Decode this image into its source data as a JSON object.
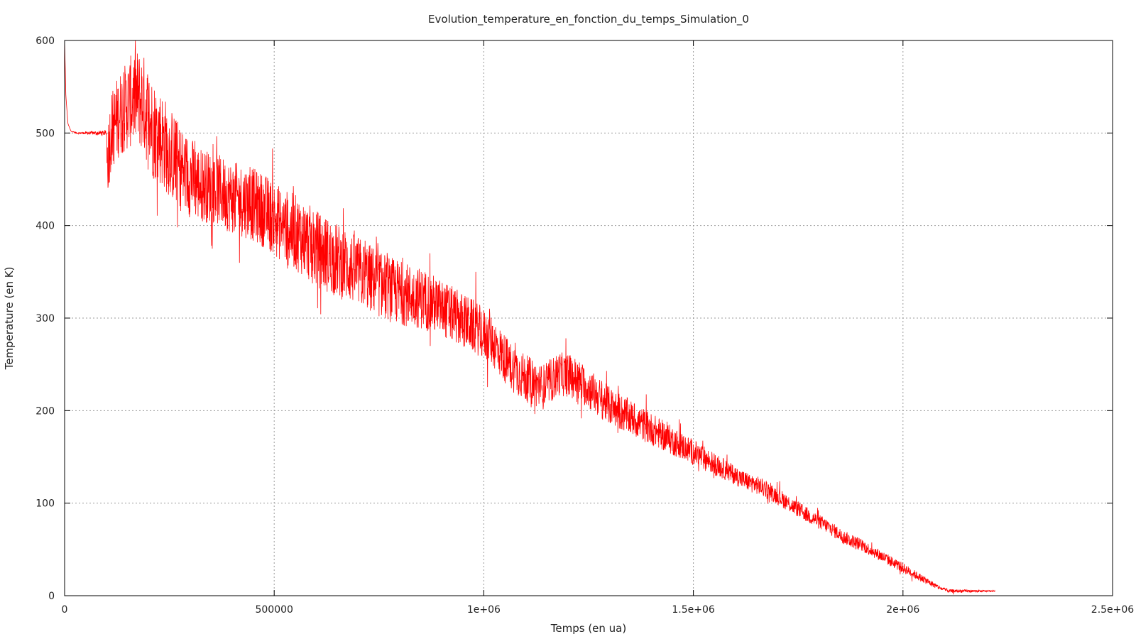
{
  "chart_data": {
    "type": "line",
    "title": "Evolution_temperature_en_fonction_du_temps_Simulation_0",
    "xlabel": "Temps (en ua)",
    "ylabel": "Temperature (en K)",
    "xlim": [
      0,
      2500000
    ],
    "ylim": [
      0,
      600
    ],
    "xticks": [
      {
        "value": 0,
        "label": "0"
      },
      {
        "value": 500000,
        "label": "500000"
      },
      {
        "value": 1000000,
        "label": "1e+06"
      },
      {
        "value": 1500000,
        "label": "1.5e+06"
      },
      {
        "value": 2000000,
        "label": "2e+06"
      },
      {
        "value": 2500000,
        "label": "2.5e+06"
      }
    ],
    "yticks": [
      {
        "value": 0,
        "label": "0"
      },
      {
        "value": 100,
        "label": "100"
      },
      {
        "value": 200,
        "label": "200"
      },
      {
        "value": 300,
        "label": "300"
      },
      {
        "value": 400,
        "label": "400"
      },
      {
        "value": 500,
        "label": "500"
      },
      {
        "value": 600,
        "label": "600"
      }
    ],
    "grid": true,
    "series": [
      {
        "color": "#ff0000",
        "x": [
          0,
          3000,
          8000,
          15000,
          30000,
          60000,
          100000,
          102000,
          110000,
          130000,
          150000,
          170000,
          190000,
          210000,
          230000,
          250000,
          280000,
          320000,
          360000,
          400000,
          440000,
          480000,
          520000,
          560000,
          600000,
          640000,
          680000,
          700000,
          740000,
          780000,
          820000,
          860000,
          900000,
          940000,
          980000,
          1020000,
          1060000,
          1100000,
          1140000,
          1180000,
          1220000,
          1260000,
          1300000,
          1340000,
          1380000,
          1420000,
          1460000,
          1500000,
          1540000,
          1580000,
          1620000,
          1660000,
          1700000,
          1740000,
          1780000,
          1820000,
          1860000,
          1900000,
          1940000,
          1980000,
          2020000,
          2060000,
          2090000,
          2110000,
          2150000,
          2220000
        ],
        "y": [
          600,
          540,
          510,
          502,
          500,
          500,
          500,
          470,
          500,
          520,
          530,
          540,
          530,
          505,
          495,
          480,
          460,
          445,
          440,
          430,
          425,
          415,
          400,
          390,
          375,
          365,
          355,
          350,
          340,
          330,
          325,
          320,
          310,
          300,
          290,
          275,
          250,
          235,
          225,
          240,
          235,
          220,
          205,
          195,
          185,
          175,
          165,
          155,
          145,
          135,
          125,
          118,
          108,
          96,
          85,
          75,
          63,
          55,
          45,
          35,
          25,
          15,
          8,
          5,
          5,
          5
        ],
        "noise_envelope": [
          {
            "x": 0,
            "amp": 0
          },
          {
            "x": 100000,
            "amp": 4
          },
          {
            "x": 102000,
            "amp": 60
          },
          {
            "x": 200000,
            "amp": 80
          },
          {
            "x": 350000,
            "amp": 55
          },
          {
            "x": 600000,
            "amp": 60
          },
          {
            "x": 700000,
            "amp": 55
          },
          {
            "x": 1000000,
            "amp": 40
          },
          {
            "x": 1300000,
            "amp": 30
          },
          {
            "x": 1600000,
            "amp": 15
          },
          {
            "x": 2000000,
            "amp": 8
          },
          {
            "x": 2100000,
            "amp": 3
          },
          {
            "x": 2220000,
            "amp": 1
          }
        ]
      }
    ]
  }
}
